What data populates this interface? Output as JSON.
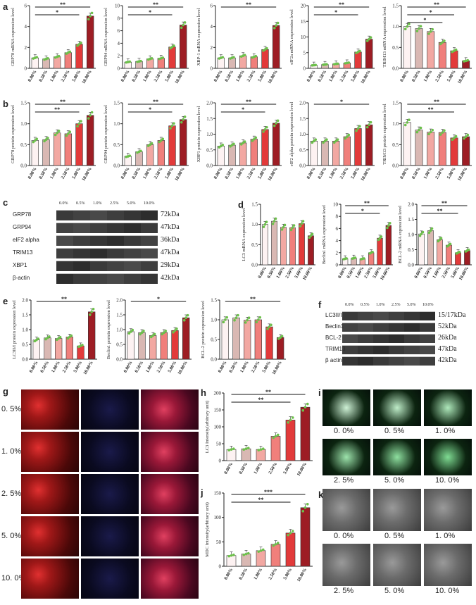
{
  "colors": {
    "c0": "#fdf2f2",
    "c1": "#d9b8b3",
    "c2": "#f2a8a2",
    "c3": "#f07f7b",
    "c4": "#e23a3a",
    "c5": "#9d1d24",
    "green": "#6cc04a"
  },
  "panel_labels": {
    "a": "a",
    "b": "b",
    "c": "c",
    "d": "d",
    "e": "e",
    "f": "f",
    "g": "g",
    "h": "h",
    "i": "i",
    "j": "j",
    "k": "k"
  },
  "conc_axis": [
    "0.00%",
    "0.50%",
    "1.00%",
    "2.50%",
    "5.00%",
    "10.00%"
  ],
  "conc_labels": [
    "0.0%",
    "0.5%",
    "1.0%",
    "2.5%",
    "5.0%",
    "10.0%"
  ],
  "sig": {
    "two": "**",
    "one": "*",
    "three": "***"
  },
  "chart_data": [
    {
      "id": "a1",
      "type": "bar",
      "ylabel": "GRP78 mRNA expression level",
      "ylim": [
        0,
        6
      ],
      "ticks": [
        "0",
        "2",
        "4",
        "6"
      ],
      "values": [
        1.0,
        0.9,
        1.1,
        1.5,
        2.3,
        5.0
      ]
    },
    {
      "id": "a2",
      "type": "bar",
      "ylabel": "GRP94 mRNA expression level",
      "ylim": [
        0,
        10
      ],
      "ticks": [
        "0",
        "2",
        "4",
        "6",
        "8",
        "10"
      ],
      "values": [
        1.0,
        1.1,
        1.5,
        1.6,
        3.4,
        6.9
      ]
    },
    {
      "id": "a3",
      "type": "bar",
      "ylabel": "XBP-1 mRNA expression level",
      "ylim": [
        0,
        6
      ],
      "ticks": [
        "0",
        "2",
        "4",
        "6"
      ],
      "values": [
        1.0,
        1.0,
        1.2,
        1.1,
        1.8,
        4.1
      ]
    },
    {
      "id": "a4",
      "type": "bar",
      "ylabel": "eIF2a mRNA expression level",
      "ylim": [
        0,
        20
      ],
      "ticks": [
        "0",
        "5",
        "10",
        "15",
        "20"
      ],
      "values": [
        1.0,
        1.2,
        1.4,
        1.7,
        5.2,
        9.3
      ]
    },
    {
      "id": "a5",
      "type": "bar",
      "ylabel": "TRIM13 mRNA expression level",
      "ylim": [
        0,
        1.5
      ],
      "ticks": [
        "0.0",
        "0.5",
        "1.0",
        "1.5"
      ],
      "values": [
        1.0,
        0.95,
        0.88,
        0.62,
        0.42,
        0.18
      ]
    },
    {
      "id": "b1",
      "type": "bar",
      "ylabel": "GRP78 protein expression level",
      "ylim": [
        0,
        1.5
      ],
      "ticks": [
        "0.0",
        "0.5",
        "1.0",
        "1.5"
      ],
      "values": [
        0.6,
        0.62,
        0.78,
        0.76,
        1.0,
        1.2
      ]
    },
    {
      "id": "b2",
      "type": "bar",
      "ylabel": "GRP94 protein expression level",
      "ylim": [
        0,
        1.5
      ],
      "ticks": [
        "0.0",
        "0.5",
        "1.0",
        "1.5"
      ],
      "values": [
        0.22,
        0.33,
        0.5,
        0.6,
        0.95,
        1.1
      ]
    },
    {
      "id": "b3",
      "type": "bar",
      "ylabel": "XBP1 protein expression level",
      "ylim": [
        0,
        2.0
      ],
      "ticks": [
        "0.0",
        "0.5",
        "1.0",
        "1.5",
        "2.0"
      ],
      "values": [
        0.62,
        0.65,
        0.72,
        0.84,
        1.15,
        1.35
      ]
    },
    {
      "id": "b4",
      "type": "bar",
      "ylabel": "eIF2 alpha protein expression level",
      "ylim": [
        0,
        2.0
      ],
      "ticks": [
        "0.0",
        "0.5",
        "1.0",
        "1.5",
        "2.0"
      ],
      "values": [
        0.78,
        0.78,
        0.78,
        0.92,
        1.18,
        1.3
      ]
    },
    {
      "id": "b5",
      "type": "bar",
      "ylabel": "TRIM13 protein expression level",
      "ylim": [
        0,
        1.5
      ],
      "ticks": [
        "0.0",
        "0.5",
        "1.0",
        "1.5"
      ],
      "values": [
        1.03,
        0.85,
        0.8,
        0.79,
        0.66,
        0.69
      ]
    },
    {
      "id": "d1",
      "type": "bar",
      "ylabel": "LC3 mRNA expression level",
      "ylim": [
        0,
        1.5
      ],
      "ticks": [
        "0.0",
        "0.5",
        "1.0",
        "1.5"
      ],
      "values": [
        1.0,
        1.08,
        0.93,
        0.92,
        1.02,
        0.72
      ]
    },
    {
      "id": "d2",
      "type": "bar",
      "ylabel": "Beclin1 mRNA expression level",
      "ylim": [
        0,
        10
      ],
      "ticks": [
        "0",
        "2",
        "4",
        "6",
        "8",
        "10"
      ],
      "values": [
        1.0,
        1.1,
        1.0,
        2.0,
        4.4,
        6.5
      ]
    },
    {
      "id": "d3",
      "type": "bar",
      "ylabel": "BCL-2 mRNA expression level",
      "ylim": [
        0,
        2.0
      ],
      "ticks": [
        "0.0",
        "0.5",
        "1.0",
        "1.5",
        "2.0"
      ],
      "values": [
        1.02,
        1.13,
        0.83,
        0.65,
        0.4,
        0.47
      ]
    },
    {
      "id": "e1",
      "type": "bar",
      "ylabel": "LC3II/I protein expression level",
      "ylim": [
        0,
        2.0
      ],
      "ticks": [
        "0.0",
        "0.5",
        "1.0",
        "1.5",
        "2.0"
      ],
      "values": [
        0.65,
        0.72,
        0.7,
        0.75,
        0.45,
        1.6
      ]
    },
    {
      "id": "e2",
      "type": "bar",
      "ylabel": "Beclin1 protein expression level",
      "ylim": [
        0,
        2.0
      ],
      "ticks": [
        "0.0",
        "0.5",
        "1.0",
        "1.5",
        "2.0"
      ],
      "values": [
        0.93,
        0.9,
        0.8,
        0.9,
        0.97,
        1.4
      ]
    },
    {
      "id": "e3",
      "type": "bar",
      "ylabel": "BCL-2 protein expression level",
      "ylim": [
        0,
        1.5
      ],
      "ticks": [
        "0.0",
        "0.5",
        "1.0",
        "1.5"
      ],
      "values": [
        1.0,
        1.05,
        0.99,
        1.0,
        0.82,
        0.55
      ]
    },
    {
      "id": "h1",
      "type": "bar",
      "ylabel": "LC3 Intensity(arbitrary unit)",
      "ylim": [
        0,
        200
      ],
      "ticks": [
        "0",
        "50",
        "100",
        "150",
        "200"
      ],
      "values": [
        33,
        35,
        33,
        72,
        120,
        158
      ]
    },
    {
      "id": "j1",
      "type": "bar",
      "ylabel": "MDC Intensity(arbitrary unit)",
      "ylim": [
        0,
        150
      ],
      "ticks": [
        "0",
        "50",
        "100",
        "150"
      ],
      "values": [
        22,
        25,
        32,
        45,
        68,
        120
      ]
    }
  ],
  "blot_c": {
    "rows": [
      {
        "name": "GRP78",
        "kda": "72kDa"
      },
      {
        "name": "GRP94",
        "kda": "47kDa"
      },
      {
        "name": "eIF2 alpha",
        "kda": "36kDa"
      },
      {
        "name": "TRIM13",
        "kda": "47kDa"
      },
      {
        "name": "XBP1",
        "kda": "29kDa"
      },
      {
        "name": "β-actin",
        "kda": "42kDa"
      }
    ]
  },
  "blot_f": {
    "rows": [
      {
        "name": "LC3II/I",
        "kda": "15/17kDa"
      },
      {
        "name": "Beclin1",
        "kda": "52kDa"
      },
      {
        "name": "BCL-2",
        "kda": "26kDa"
      },
      {
        "name": "TRIM13",
        "kda": "47kDa"
      },
      {
        "name": "β actin",
        "kda": "42kDa"
      }
    ]
  },
  "g_rows": [
    "0. 5%",
    "1. 0%",
    "2. 5%",
    "5. 0%",
    "10. 0%"
  ],
  "i_labels": [
    "0. 0%",
    "0. 5%",
    "1. 0%",
    "2. 5%",
    "5. 0%",
    "10. 0%"
  ],
  "k_labels": [
    "0. 0%",
    "0. 5%",
    "1. 0%",
    "2. 5%",
    "5. 0%",
    "10. 0%"
  ]
}
